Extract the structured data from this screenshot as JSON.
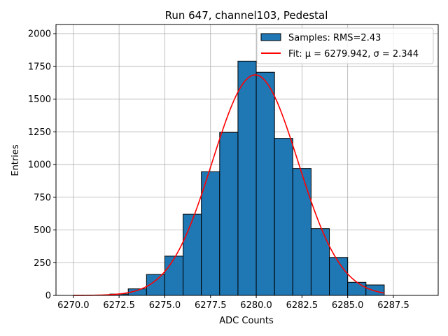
{
  "chart_data": {
    "type": "bar",
    "title": "Run 647, channel103, Pedestal",
    "xlabel": "ADC Counts",
    "ylabel": "Entries",
    "xlim": [
      6269.05,
      6289.95
    ],
    "ylim": [
      0,
      2070
    ],
    "grid": true,
    "legend_position": "top-right",
    "x_ticks": [
      6270.0,
      6272.5,
      6275.0,
      6277.5,
      6280.0,
      6282.5,
      6285.0,
      6287.5
    ],
    "x_tick_labels": [
      "6270.0",
      "6272.5",
      "6275.0",
      "6277.5",
      "6280.0",
      "6282.5",
      "6285.0",
      "6287.5"
    ],
    "y_ticks": [
      0,
      250,
      500,
      750,
      1000,
      1250,
      1500,
      1750,
      2000
    ],
    "y_tick_labels": [
      "0",
      "250",
      "500",
      "750",
      "1000",
      "1250",
      "1500",
      "1750",
      "2000"
    ],
    "histogram": {
      "name": "Samples: RMS=2.43",
      "color": "#1f77b4",
      "edge_color": "#000000",
      "bin_edges": [
        6270,
        6271,
        6272,
        6273,
        6274,
        6275,
        6276,
        6277,
        6278,
        6279,
        6280,
        6281,
        6282,
        6283,
        6284,
        6285,
        6286,
        6287,
        6288,
        6289
      ],
      "counts": [
        0,
        0,
        10,
        50,
        160,
        300,
        620,
        945,
        1245,
        1790,
        1705,
        1200,
        970,
        510,
        290,
        100,
        80,
        0,
        0
      ]
    },
    "fit": {
      "name": "Fit: μ = 6279.942, σ = 2.344",
      "color": "#ff0000",
      "type": "gaussian",
      "mu": 6279.942,
      "sigma": 2.344,
      "amplitude": 1685,
      "x_range": [
        6270,
        6287
      ]
    }
  }
}
